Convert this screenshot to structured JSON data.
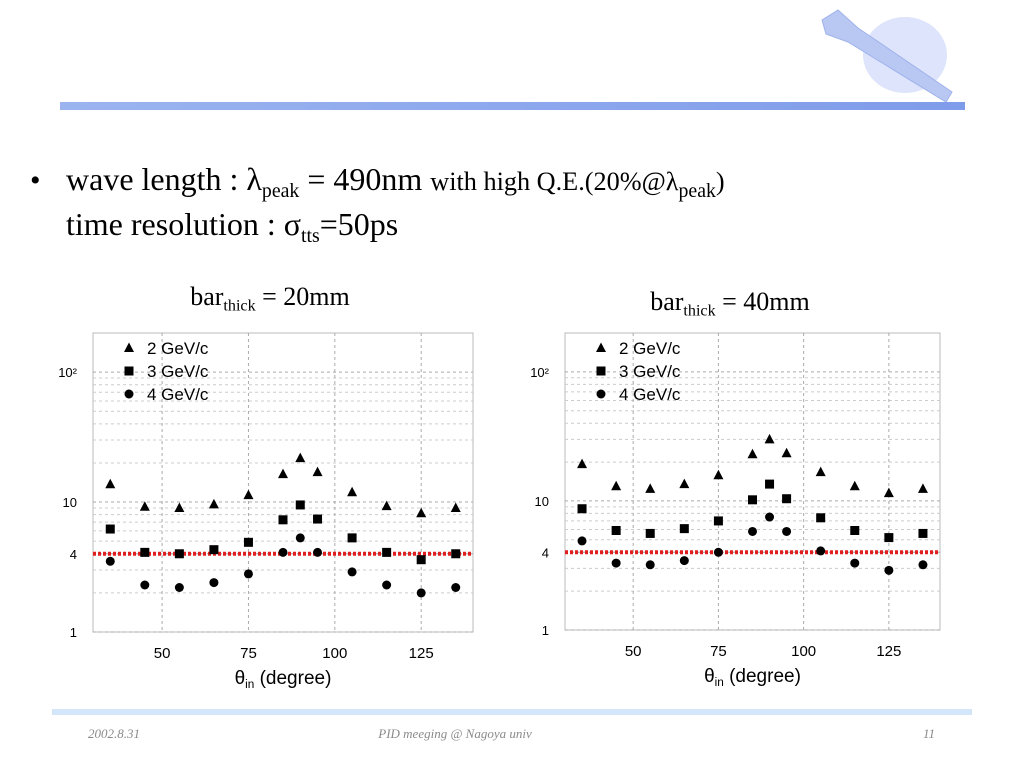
{
  "slide": {
    "bullet": "•",
    "lines": [
      [
        {
          "text": "wave length :  λ"
        },
        {
          "text": "peak",
          "sub": true
        },
        {
          "text": " = 490nm "
        },
        {
          "text": "with high Q.E.(20%@λ",
          "small": true
        },
        {
          "text": "peak",
          "sub": true
        },
        {
          "text": ")",
          "small": true
        }
      ],
      [
        {
          "text": "time resolution :  σ"
        },
        {
          "text": "tts",
          "sub": true
        },
        {
          "text": "=50ps"
        }
      ]
    ],
    "footer": {
      "date": "2002.8.31",
      "center": "PID meeging @ Nagoya univ",
      "page": "11"
    }
  },
  "chart_data": [
    {
      "type": "scatter",
      "title": [
        {
          "text": "bar"
        },
        {
          "text": "thick",
          "sub": true
        },
        {
          "text": " = 20mm"
        }
      ],
      "xlabel": [
        {
          "text": "θ"
        },
        {
          "text": "in",
          "sub": true
        },
        {
          "text": "  (degree)"
        }
      ],
      "x": [
        35,
        45,
        55,
        65,
        75,
        85,
        90,
        95,
        105,
        115,
        125,
        135
      ],
      "series": [
        {
          "name": "2 GeV/c",
          "marker": "triangle",
          "color": "#000000",
          "values": [
            13.7,
            9.2,
            9.0,
            9.6,
            11.3,
            16.4,
            21.8,
            17.0,
            11.9,
            9.3,
            8.2,
            9.0
          ]
        },
        {
          "name": "3 GeV/c",
          "marker": "square",
          "color": "#000000",
          "values": [
            6.2,
            4.1,
            4.0,
            4.3,
            4.9,
            7.3,
            9.5,
            7.4,
            5.3,
            4.1,
            3.6,
            4.0
          ]
        },
        {
          "name": "4 GeV/c",
          "marker": "circle",
          "color": "#000000",
          "values": [
            3.5,
            2.3,
            2.2,
            2.4,
            2.8,
            4.1,
            5.3,
            4.1,
            2.9,
            2.3,
            2.0,
            2.2
          ]
        }
      ],
      "hline": {
        "value": 4,
        "color": "#e02020"
      },
      "xlim": [
        30,
        140
      ],
      "xticks": [
        50,
        75,
        100,
        125
      ],
      "ylim": [
        1,
        200
      ],
      "yticks": [
        1,
        4,
        10,
        {
          "value": 100,
          "label": "10²"
        }
      ],
      "log_y": true,
      "grid": true
    },
    {
      "type": "scatter",
      "title": [
        {
          "text": "bar"
        },
        {
          "text": "thick",
          "sub": true
        },
        {
          "text": " = 40mm"
        }
      ],
      "xlabel": [
        {
          "text": "θ"
        },
        {
          "text": "in",
          "sub": true
        },
        {
          "text": "  (degree)"
        }
      ],
      "x": [
        35,
        45,
        55,
        65,
        75,
        85,
        90,
        95,
        105,
        115,
        125,
        135
      ],
      "series": [
        {
          "name": "2 GeV/c",
          "marker": "triangle",
          "color": "#000000",
          "values": [
            19.3,
            13.0,
            12.4,
            13.5,
            15.8,
            23.0,
            30.0,
            23.4,
            16.7,
            13.0,
            11.5,
            12.4
          ]
        },
        {
          "name": "3 GeV/c",
          "marker": "square",
          "color": "#000000",
          "values": [
            8.7,
            5.9,
            5.6,
            6.1,
            7.0,
            10.2,
            13.5,
            10.4,
            7.4,
            5.9,
            5.2,
            5.6
          ]
        },
        {
          "name": "4 GeV/c",
          "marker": "circle",
          "color": "#000000",
          "values": [
            4.9,
            3.3,
            3.2,
            3.45,
            4.0,
            5.8,
            7.5,
            5.8,
            4.1,
            3.3,
            2.9,
            3.2
          ]
        }
      ],
      "hline": {
        "value": 4,
        "color": "#e02020"
      },
      "xlim": [
        30,
        140
      ],
      "xticks": [
        50,
        75,
        100,
        125
      ],
      "ylim": [
        1,
        200
      ],
      "yticks": [
        1,
        4,
        10,
        {
          "value": 100,
          "label": "10²"
        }
      ],
      "log_y": true,
      "grid": true
    }
  ]
}
